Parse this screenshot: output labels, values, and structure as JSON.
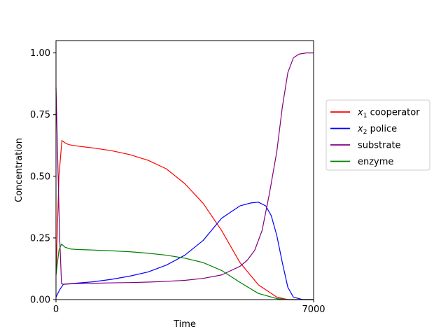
{
  "chart_data": {
    "type": "line",
    "xlabel": "Time",
    "ylabel": "Concentration",
    "xlim": [
      0,
      7000
    ],
    "ylim": [
      0,
      1.05
    ],
    "xticks": [
      0,
      7000
    ],
    "xtick_labels": [
      "0",
      "7000"
    ],
    "yticks": [
      0,
      0.25,
      0.5,
      0.75,
      1.0
    ],
    "ytick_labels": [
      "0.00",
      "0.25",
      "0.50",
      "0.75",
      "1.00"
    ],
    "grid": false,
    "legend_position": "right",
    "series": [
      {
        "name": "x1 cooperator",
        "name_main": "x",
        "name_sub": "1",
        "name_rest": " cooperator",
        "color": "#ff0000",
        "x": [
          0,
          80,
          160,
          250,
          350,
          600,
          1000,
          1500,
          2000,
          2500,
          3000,
          3500,
          4000,
          4500,
          5000,
          5500,
          6000,
          6300,
          6600,
          7000
        ],
        "y": [
          0.1,
          0.5,
          0.645,
          0.635,
          0.628,
          0.622,
          0.615,
          0.604,
          0.588,
          0.565,
          0.53,
          0.47,
          0.39,
          0.28,
          0.15,
          0.06,
          0.01,
          0.0,
          0.0,
          0.0
        ]
      },
      {
        "name": "x2 police",
        "name_main": "x",
        "name_sub": "2",
        "name_rest": " police",
        "color": "#0000ff",
        "x": [
          0,
          100,
          200,
          500,
          1000,
          1500,
          2000,
          2500,
          3000,
          3500,
          4000,
          4500,
          5000,
          5300,
          5500,
          5700,
          5850,
          6000,
          6150,
          6300,
          6450,
          6700,
          7000
        ],
        "y": [
          0.01,
          0.04,
          0.062,
          0.066,
          0.072,
          0.082,
          0.095,
          0.112,
          0.14,
          0.18,
          0.24,
          0.33,
          0.38,
          0.392,
          0.395,
          0.38,
          0.34,
          0.26,
          0.15,
          0.05,
          0.01,
          0.0,
          0.0
        ]
      },
      {
        "name": "substrate",
        "name_main": "substrate",
        "name_sub": "",
        "name_rest": "",
        "color": "#800080",
        "x": [
          0,
          50,
          100,
          150,
          200,
          500,
          1000,
          1500,
          2000,
          2500,
          3000,
          3500,
          4000,
          4500,
          5000,
          5200,
          5400,
          5600,
          5800,
          6000,
          6150,
          6300,
          6450,
          6600,
          6800,
          7000
        ],
        "y": [
          0.86,
          0.55,
          0.25,
          0.065,
          0.062,
          0.065,
          0.066,
          0.068,
          0.069,
          0.071,
          0.074,
          0.078,
          0.086,
          0.1,
          0.135,
          0.16,
          0.2,
          0.28,
          0.43,
          0.6,
          0.78,
          0.92,
          0.98,
          0.995,
          1.0,
          1.0
        ]
      },
      {
        "name": "enzyme",
        "name_main": "enzyme",
        "name_sub": "",
        "name_rest": "",
        "color": "#008000",
        "x": [
          0,
          80,
          150,
          250,
          400,
          600,
          1000,
          1500,
          2000,
          2500,
          3000,
          3500,
          4000,
          4500,
          5000,
          5500,
          6000,
          6300,
          6600,
          7000
        ],
        "y": [
          0.1,
          0.2,
          0.225,
          0.212,
          0.205,
          0.203,
          0.201,
          0.198,
          0.194,
          0.188,
          0.18,
          0.168,
          0.15,
          0.118,
          0.07,
          0.025,
          0.004,
          0.0,
          0.0,
          0.0
        ]
      }
    ]
  }
}
